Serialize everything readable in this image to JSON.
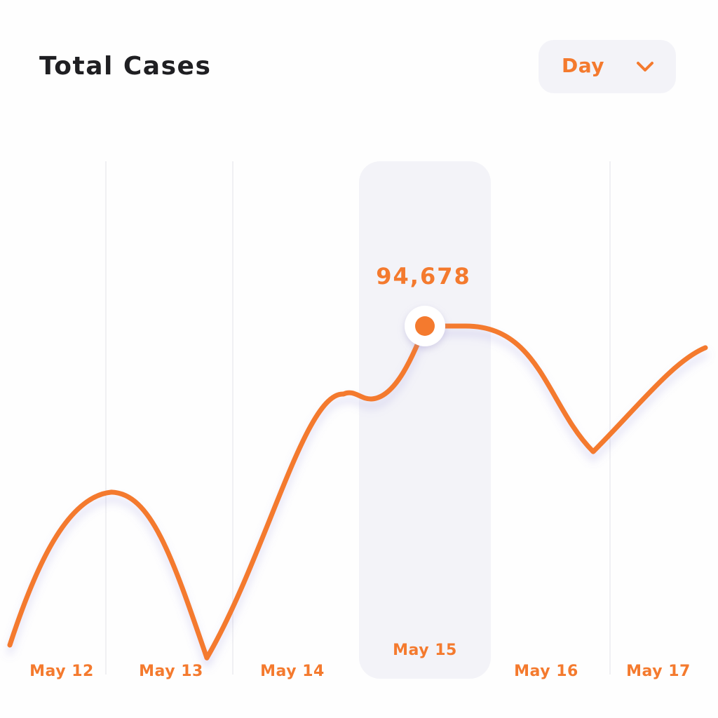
{
  "header": {
    "title": "Total Cases",
    "period_selector": {
      "selected": "Day",
      "icon": "chevron-down-icon"
    }
  },
  "colors": {
    "accent": "#f47a2e",
    "highlight_band": "#f3f3f8",
    "gridline": "#ebebef",
    "title_text": "#1f1f22"
  },
  "chart_data": {
    "type": "line",
    "categories": [
      "May 12",
      "May 13",
      "May 14",
      "May 15",
      "May 16",
      "May 17"
    ],
    "series": [
      {
        "values": [
          null,
          62000,
          60000,
          94678,
          81000,
          90000
        ]
      }
    ],
    "highlight": {
      "category": "May 15",
      "label": "94,678",
      "value": 94678
    },
    "grid": {
      "vertical": true,
      "horizontal": false
    },
    "legend": "none"
  }
}
